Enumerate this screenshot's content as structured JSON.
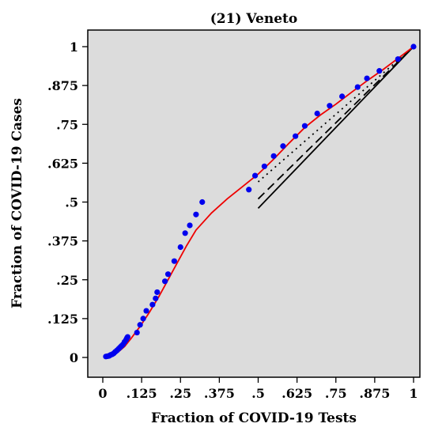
{
  "chart_data": {
    "type": "scatter",
    "title": "(21) Veneto",
    "xlabel": "Fraction of COVID-19 Tests",
    "ylabel": "Fraction of COVID-19 Cases",
    "xlim": [
      0,
      1
    ],
    "ylim": [
      0,
      1
    ],
    "xticks": [
      {
        "v": 0,
        "label": "0"
      },
      {
        "v": 0.125,
        "label": ".125"
      },
      {
        "v": 0.25,
        "label": ".25"
      },
      {
        "v": 0.375,
        "label": ".375"
      },
      {
        "v": 0.5,
        "label": ".5"
      },
      {
        "v": 0.625,
        "label": ".625"
      },
      {
        "v": 0.75,
        "label": ".75"
      },
      {
        "v": 0.875,
        "label": ".875"
      },
      {
        "v": 1,
        "label": "1"
      }
    ],
    "yticks": [
      {
        "v": 0,
        "label": "0"
      },
      {
        "v": 0.125,
        "label": ".125"
      },
      {
        "v": 0.25,
        "label": ".25"
      },
      {
        "v": 0.375,
        "label": ".375"
      },
      {
        "v": 0.5,
        "label": ".5"
      },
      {
        "v": 0.625,
        "label": ".625"
      },
      {
        "v": 0.75,
        "label": ".75"
      },
      {
        "v": 0.875,
        "label": ".875"
      },
      {
        "v": 1,
        "label": "1"
      }
    ],
    "grid": false,
    "background": "#dcdcdc",
    "colors": {
      "points": "#0000ee",
      "fit": "#ee0000",
      "reference": "#000000"
    },
    "points": [
      [
        0.01,
        0.003
      ],
      [
        0.015,
        0.004
      ],
      [
        0.02,
        0.005
      ],
      [
        0.025,
        0.008
      ],
      [
        0.03,
        0.01
      ],
      [
        0.035,
        0.013
      ],
      [
        0.04,
        0.018
      ],
      [
        0.045,
        0.022
      ],
      [
        0.05,
        0.027
      ],
      [
        0.055,
        0.032
      ],
      [
        0.06,
        0.037
      ],
      [
        0.065,
        0.042
      ],
      [
        0.07,
        0.05
      ],
      [
        0.075,
        0.057
      ],
      [
        0.078,
        0.063
      ],
      [
        0.08,
        0.066
      ],
      [
        0.11,
        0.08
      ],
      [
        0.12,
        0.105
      ],
      [
        0.13,
        0.125
      ],
      [
        0.14,
        0.15
      ],
      [
        0.16,
        0.17
      ],
      [
        0.17,
        0.19
      ],
      [
        0.175,
        0.21
      ],
      [
        0.2,
        0.245
      ],
      [
        0.21,
        0.268
      ],
      [
        0.23,
        0.31
      ],
      [
        0.25,
        0.355
      ],
      [
        0.265,
        0.4
      ],
      [
        0.28,
        0.425
      ],
      [
        0.3,
        0.46
      ],
      [
        0.32,
        0.5
      ],
      [
        0.47,
        0.54
      ],
      [
        0.49,
        0.585
      ],
      [
        0.52,
        0.615
      ],
      [
        0.55,
        0.648
      ],
      [
        0.58,
        0.68
      ],
      [
        0.62,
        0.712
      ],
      [
        0.65,
        0.745
      ],
      [
        0.69,
        0.785
      ],
      [
        0.73,
        0.81
      ],
      [
        0.77,
        0.84
      ],
      [
        0.82,
        0.87
      ],
      [
        0.85,
        0.898
      ],
      [
        0.89,
        0.922
      ],
      [
        0.95,
        0.96
      ],
      [
        1.0,
        1.0
      ]
    ],
    "fit_curve": [
      [
        0.01,
        0.002
      ],
      [
        0.03,
        0.006
      ],
      [
        0.05,
        0.018
      ],
      [
        0.07,
        0.035
      ],
      [
        0.09,
        0.06
      ],
      [
        0.12,
        0.1
      ],
      [
        0.15,
        0.145
      ],
      [
        0.18,
        0.195
      ],
      [
        0.21,
        0.25
      ],
      [
        0.24,
        0.305
      ],
      [
        0.27,
        0.36
      ],
      [
        0.3,
        0.41
      ],
      [
        0.35,
        0.465
      ],
      [
        0.4,
        0.51
      ],
      [
        0.45,
        0.55
      ],
      [
        0.5,
        0.59
      ],
      [
        0.55,
        0.638
      ],
      [
        0.6,
        0.69
      ],
      [
        0.65,
        0.74
      ],
      [
        0.7,
        0.78
      ],
      [
        0.75,
        0.815
      ],
      [
        0.8,
        0.853
      ],
      [
        0.85,
        0.89
      ],
      [
        0.9,
        0.925
      ],
      [
        0.95,
        0.962
      ],
      [
        1.0,
        1.0
      ]
    ],
    "reference_lines": [
      {
        "style": "solid",
        "from": [
          0.5,
          0.48
        ],
        "to": [
          1,
          1
        ]
      },
      {
        "style": "dashed",
        "from": [
          0.5,
          0.51
        ],
        "to": [
          1,
          1
        ]
      },
      {
        "style": "dotted",
        "from": [
          0.5,
          0.565
        ],
        "to": [
          1,
          1
        ]
      }
    ]
  }
}
